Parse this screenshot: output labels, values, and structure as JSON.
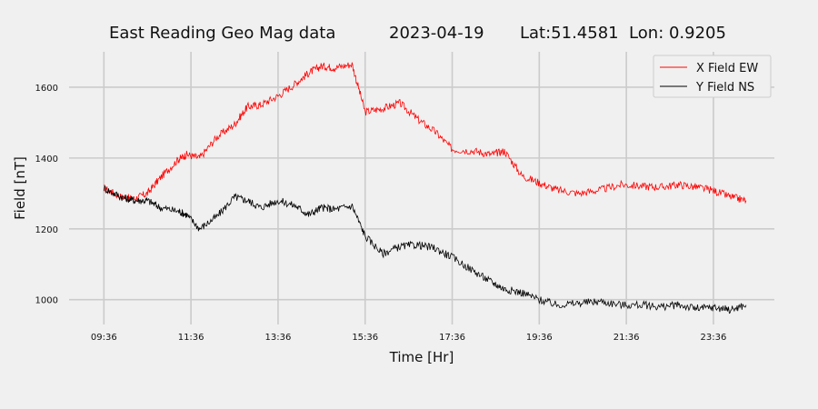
{
  "chart_data": {
    "type": "line",
    "title": {
      "main": "East Reading Geo Mag data",
      "date": "2023-04-19",
      "location": "Lat:51.4581  Lon: 0.9205"
    },
    "xlabel": "Time  [Hr]",
    "ylabel": "Field  [nT]",
    "x_unit": "hours",
    "xlim": [
      8.8,
      25.0
    ],
    "ylim": [
      930,
      1700
    ],
    "x_ticks": [
      9.6,
      11.6,
      13.6,
      15.6,
      17.6,
      19.6,
      21.6,
      23.6
    ],
    "x_tick_labels": [
      "09:36",
      "11:36",
      "13:36",
      "15:36",
      "17:36",
      "19:36",
      "21:36",
      "23:36"
    ],
    "y_ticks": [
      1000,
      1200,
      1400,
      1600
    ],
    "y_tick_labels": [
      "1000",
      "1200",
      "1400",
      "1600"
    ],
    "grid": true,
    "legend_position": "top-right",
    "series": [
      {
        "name": "X Field EW",
        "color": "#ff0000",
        "x": [
          9.6,
          10.0,
          10.3,
          10.6,
          10.9,
          11.3,
          11.5,
          11.8,
          12.2,
          12.6,
          12.9,
          13.2,
          13.6,
          14.0,
          14.3,
          14.6,
          14.9,
          15.3,
          15.6,
          16.0,
          16.4,
          16.8,
          17.2,
          17.6,
          18.1,
          18.5,
          18.8,
          19.2,
          19.6,
          20.0,
          20.5,
          21.0,
          21.5,
          22.0,
          22.4,
          22.8,
          23.2,
          23.6,
          24.0,
          24.35
        ],
        "y": [
          1315,
          1290,
          1285,
          1300,
          1345,
          1395,
          1410,
          1400,
          1460,
          1495,
          1545,
          1550,
          1575,
          1610,
          1640,
          1660,
          1655,
          1665,
          1530,
          1540,
          1555,
          1510,
          1475,
          1425,
          1420,
          1410,
          1420,
          1350,
          1330,
          1310,
          1300,
          1310,
          1325,
          1320,
          1318,
          1325,
          1318,
          1308,
          1290,
          1280
        ]
      },
      {
        "name": "Y Field NS",
        "color": "#000000",
        "x": [
          9.6,
          10.0,
          10.3,
          10.6,
          10.9,
          11.3,
          11.5,
          11.8,
          12.2,
          12.6,
          12.9,
          13.2,
          13.6,
          14.0,
          14.3,
          14.6,
          14.9,
          15.3,
          15.6,
          16.0,
          16.4,
          16.8,
          17.2,
          17.6,
          18.1,
          18.5,
          18.8,
          19.2,
          19.6,
          20.0,
          20.5,
          21.0,
          21.5,
          22.0,
          22.4,
          22.8,
          23.2,
          23.6,
          24.0,
          24.35
        ],
        "y": [
          1315,
          1290,
          1280,
          1280,
          1260,
          1250,
          1240,
          1200,
          1235,
          1290,
          1280,
          1260,
          1280,
          1265,
          1240,
          1260,
          1255,
          1265,
          1180,
          1130,
          1150,
          1155,
          1145,
          1120,
          1080,
          1050,
          1030,
          1020,
          1000,
          985,
          990,
          995,
          985,
          985,
          980,
          985,
          975,
          978,
          972,
          985
        ]
      }
    ]
  }
}
